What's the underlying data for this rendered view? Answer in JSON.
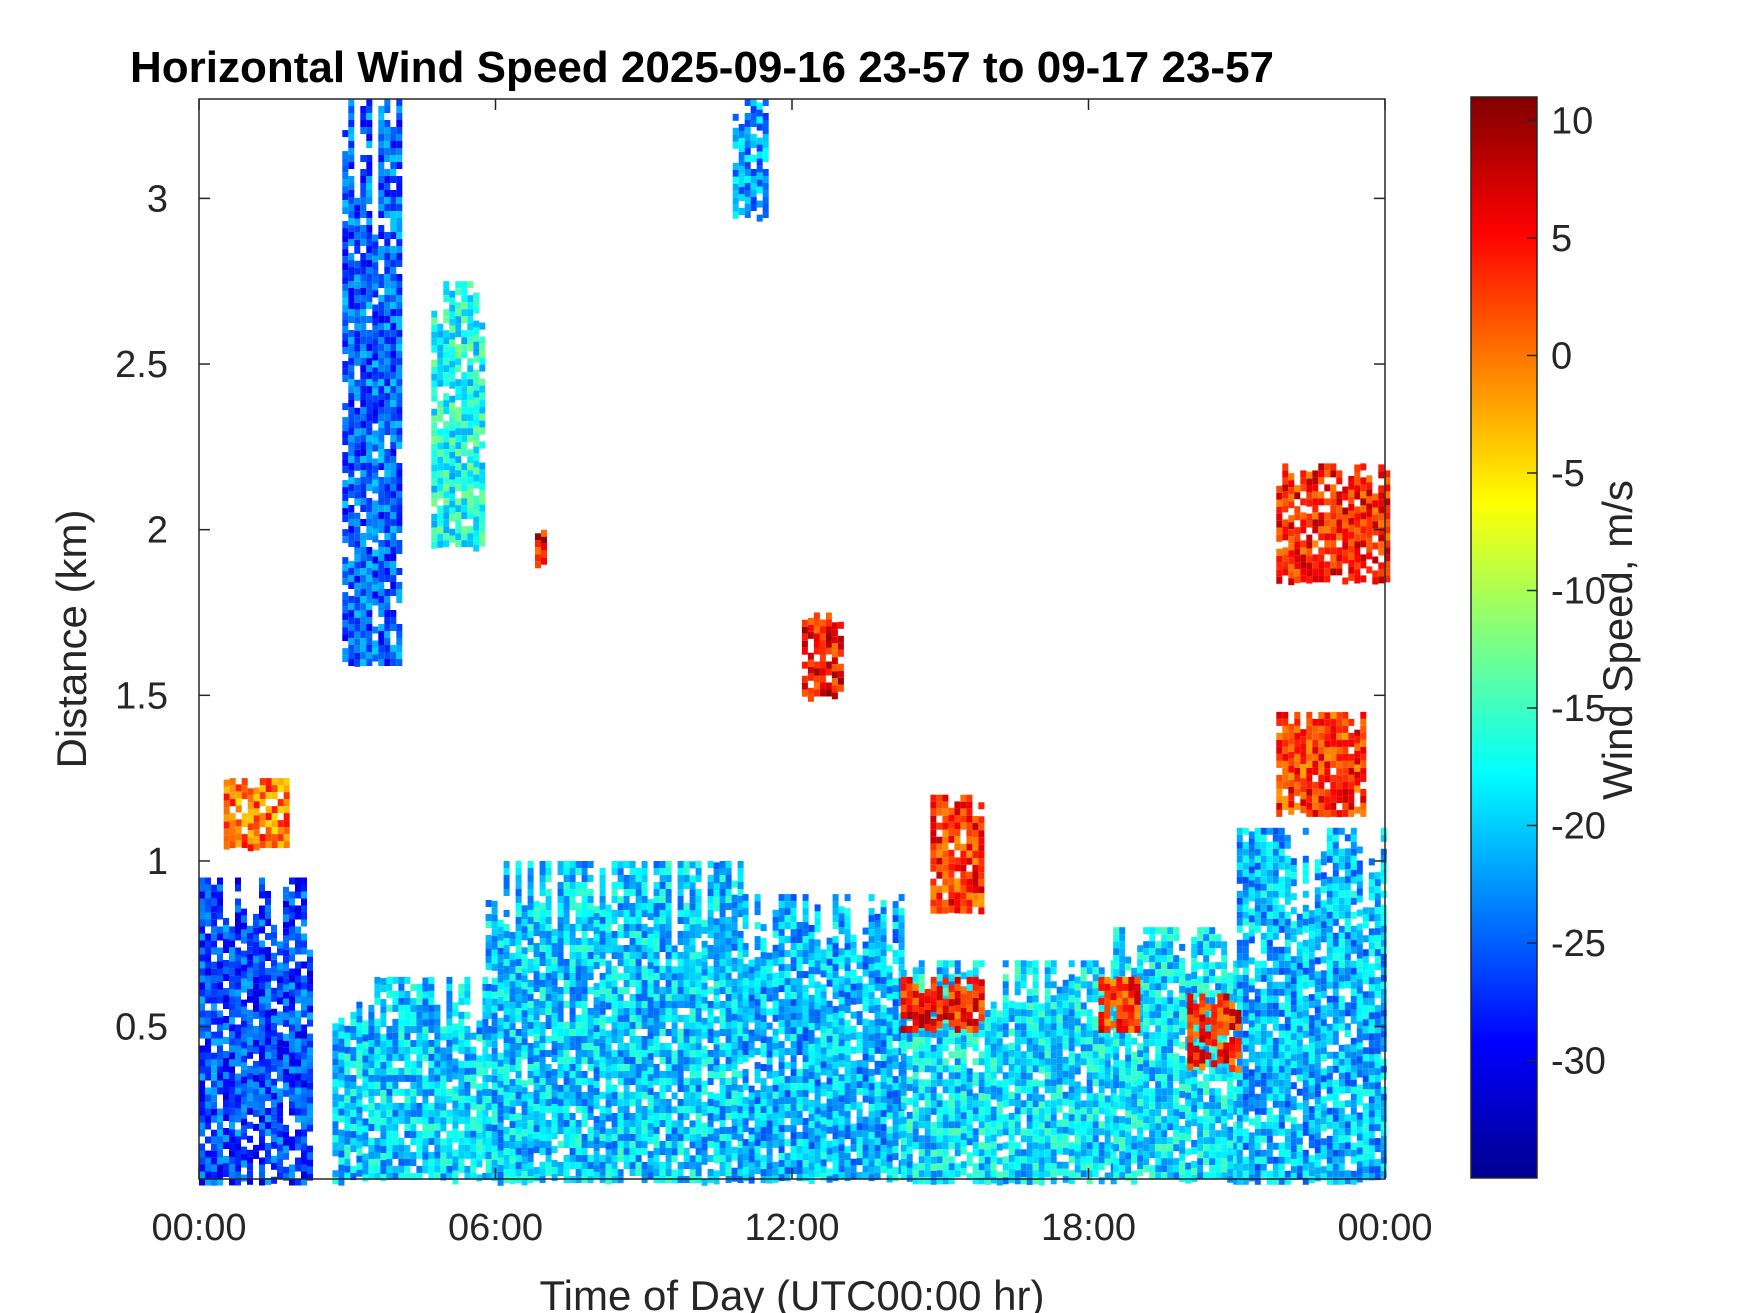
{
  "chart_data": {
    "type": "heatmap",
    "title": "Horizontal Wind Speed 2025-09-16 23-57 to 09-17 23-57",
    "xlabel": "Time of Day (UTC00:00 hr)",
    "ylabel": "Distance (km)",
    "x_ticks": [
      "00:00",
      "06:00",
      "12:00",
      "18:00",
      "00:00"
    ],
    "x_range_hours": [
      0,
      24
    ],
    "y_ticks": [
      "0.5",
      "1",
      "1.5",
      "2",
      "2.5",
      "3"
    ],
    "y_tick_values": [
      0.5,
      1,
      1.5,
      2,
      2.5,
      3
    ],
    "ylim": [
      0.04,
      3.3
    ],
    "grid": false,
    "colorbar": {
      "label": "Wind Speed, m/s",
      "ticks": [
        "10",
        "5",
        "0",
        "-5",
        "-10",
        "-15",
        "-20",
        "-25",
        "-30"
      ],
      "tick_values": [
        10,
        5,
        0,
        -5,
        -10,
        -15,
        -20,
        -25,
        -30
      ],
      "range": [
        -35,
        11
      ],
      "colormap": "jet"
    },
    "features": [
      {
        "t_start": 0.0,
        "t_end": 2.2,
        "z_low": 0.04,
        "z_high": 0.95,
        "speed": -26
      },
      {
        "t_start": 2.7,
        "t_end": 5.8,
        "z_low": 0.04,
        "z_high": 0.65,
        "speed": -20
      },
      {
        "t_start": 5.8,
        "t_end": 11.0,
        "z_low": 0.04,
        "z_high": 1.0,
        "speed": -20
      },
      {
        "t_start": 11.0,
        "t_end": 14.2,
        "z_low": 0.04,
        "z_high": 0.9,
        "speed": -21
      },
      {
        "t_start": 14.2,
        "t_end": 18.5,
        "z_low": 0.04,
        "z_high": 0.7,
        "speed": -19
      },
      {
        "t_start": 18.5,
        "t_end": 21.0,
        "z_low": 0.04,
        "z_high": 0.8,
        "speed": -19
      },
      {
        "t_start": 21.0,
        "t_end": 24.0,
        "z_low": 0.04,
        "z_high": 1.1,
        "speed": -21
      },
      {
        "t_start": 2.9,
        "t_end": 4.1,
        "z_low": 1.6,
        "z_high": 3.3,
        "speed": -25
      },
      {
        "t_start": 4.7,
        "t_end": 5.7,
        "z_low": 1.95,
        "z_high": 2.75,
        "speed": -17
      },
      {
        "t_start": 10.8,
        "t_end": 11.5,
        "z_low": 2.95,
        "z_high": 3.3,
        "speed": -22
      },
      {
        "t_start": 12.2,
        "t_end": 13.0,
        "z_low": 1.5,
        "z_high": 1.75,
        "speed": 5
      },
      {
        "t_start": 14.8,
        "t_end": 15.8,
        "z_low": 0.85,
        "z_high": 1.2,
        "speed": 3
      },
      {
        "t_start": 21.8,
        "t_end": 24.0,
        "z_low": 1.85,
        "z_high": 2.2,
        "speed": 4
      },
      {
        "t_start": 21.8,
        "t_end": 23.6,
        "z_low": 1.15,
        "z_high": 1.45,
        "speed": 3
      },
      {
        "t_start": 14.2,
        "t_end": 15.8,
        "z_low": 0.5,
        "z_high": 0.65,
        "speed": 4
      },
      {
        "t_start": 20.0,
        "t_end": 21.0,
        "z_low": 0.38,
        "z_high": 0.6,
        "speed": 4
      },
      {
        "t_start": 18.2,
        "t_end": 19.0,
        "z_low": 0.5,
        "z_high": 0.65,
        "speed": 3
      },
      {
        "t_start": 0.5,
        "t_end": 1.8,
        "z_low": 1.05,
        "z_high": 1.25,
        "speed": 0
      },
      {
        "t_start": 6.8,
        "t_end": 7.0,
        "z_low": 1.9,
        "z_high": 2.0,
        "speed": 5
      }
    ]
  }
}
